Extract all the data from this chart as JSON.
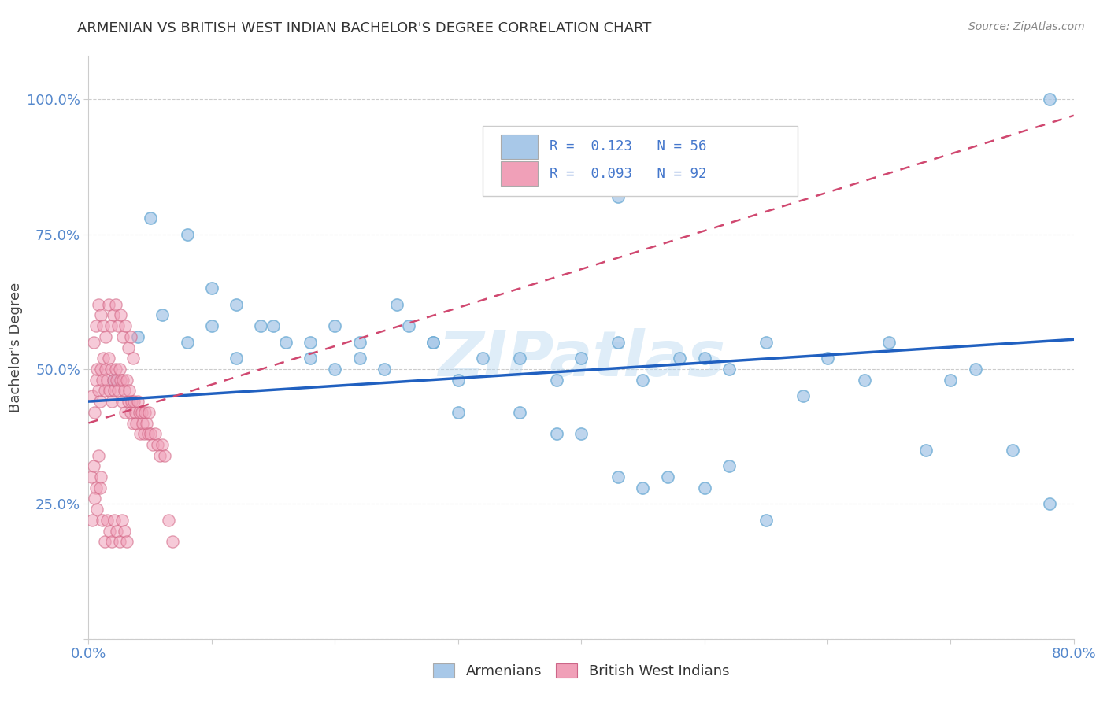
{
  "title": "ARMENIAN VS BRITISH WEST INDIAN BACHELOR'S DEGREE CORRELATION CHART",
  "source": "Source: ZipAtlas.com",
  "ylabel": "Bachelor's Degree",
  "xmin": 0.0,
  "xmax": 0.8,
  "ymin": 0.0,
  "ymax": 1.08,
  "watermark": "ZIPatlas",
  "armenian_color": "#a8c8e8",
  "armenian_edge": "#6aaad4",
  "bwi_color": "#f0a0b8",
  "bwi_edge": "#d06080",
  "trend_armenian_color": "#2060c0",
  "trend_bwi_color": "#d04870",
  "arm_trend_x0": 0.0,
  "arm_trend_x1": 0.8,
  "arm_trend_y0": 0.44,
  "arm_trend_y1": 0.555,
  "bwi_trend_x0": 0.0,
  "bwi_trend_x1": 0.8,
  "bwi_trend_y0": 0.4,
  "bwi_trend_y1": 0.97,
  "armenian_x": [
    0.02,
    0.04,
    0.06,
    0.08,
    0.1,
    0.12,
    0.14,
    0.16,
    0.18,
    0.2,
    0.22,
    0.24,
    0.26,
    0.28,
    0.3,
    0.32,
    0.35,
    0.38,
    0.4,
    0.43,
    0.45,
    0.48,
    0.5,
    0.52,
    0.55,
    0.58,
    0.6,
    0.63,
    0.65,
    0.68,
    0.7,
    0.72,
    0.75,
    0.78,
    0.05,
    0.08,
    0.1,
    0.12,
    0.15,
    0.18,
    0.2,
    0.22,
    0.25,
    0.28,
    0.3,
    0.35,
    0.38,
    0.4,
    0.43,
    0.45,
    0.47,
    0.5,
    0.52,
    0.55,
    0.78,
    0.43
  ],
  "armenian_y": [
    0.48,
    0.56,
    0.6,
    0.55,
    0.58,
    0.52,
    0.58,
    0.55,
    0.52,
    0.58,
    0.52,
    0.5,
    0.58,
    0.55,
    0.48,
    0.52,
    0.52,
    0.48,
    0.52,
    0.55,
    0.48,
    0.52,
    0.52,
    0.5,
    0.55,
    0.45,
    0.52,
    0.48,
    0.55,
    0.35,
    0.48,
    0.5,
    0.35,
    0.25,
    0.78,
    0.75,
    0.65,
    0.62,
    0.58,
    0.55,
    0.5,
    0.55,
    0.62,
    0.55,
    0.42,
    0.42,
    0.38,
    0.38,
    0.3,
    0.28,
    0.3,
    0.28,
    0.32,
    0.22,
    1.0,
    0.82
  ],
  "bwi_x": [
    0.003,
    0.005,
    0.006,
    0.007,
    0.008,
    0.009,
    0.01,
    0.011,
    0.012,
    0.013,
    0.014,
    0.015,
    0.016,
    0.017,
    0.018,
    0.019,
    0.02,
    0.021,
    0.022,
    0.023,
    0.024,
    0.025,
    0.026,
    0.027,
    0.028,
    0.029,
    0.03,
    0.031,
    0.032,
    0.033,
    0.034,
    0.035,
    0.036,
    0.037,
    0.038,
    0.039,
    0.04,
    0.041,
    0.042,
    0.043,
    0.044,
    0.045,
    0.046,
    0.047,
    0.048,
    0.049,
    0.05,
    0.052,
    0.054,
    0.056,
    0.058,
    0.06,
    0.062,
    0.004,
    0.006,
    0.008,
    0.01,
    0.012,
    0.014,
    0.016,
    0.018,
    0.02,
    0.022,
    0.024,
    0.026,
    0.028,
    0.03,
    0.032,
    0.034,
    0.036,
    0.002,
    0.004,
    0.006,
    0.008,
    0.01,
    0.003,
    0.005,
    0.007,
    0.009,
    0.011,
    0.013,
    0.015,
    0.017,
    0.019,
    0.021,
    0.023,
    0.025,
    0.027,
    0.029,
    0.031,
    0.065,
    0.068
  ],
  "bwi_y": [
    0.45,
    0.42,
    0.48,
    0.5,
    0.46,
    0.44,
    0.5,
    0.48,
    0.52,
    0.46,
    0.5,
    0.48,
    0.52,
    0.46,
    0.5,
    0.44,
    0.48,
    0.46,
    0.5,
    0.48,
    0.46,
    0.5,
    0.48,
    0.44,
    0.48,
    0.46,
    0.42,
    0.48,
    0.44,
    0.46,
    0.42,
    0.44,
    0.4,
    0.44,
    0.42,
    0.4,
    0.44,
    0.42,
    0.38,
    0.42,
    0.4,
    0.38,
    0.42,
    0.4,
    0.38,
    0.42,
    0.38,
    0.36,
    0.38,
    0.36,
    0.34,
    0.36,
    0.34,
    0.55,
    0.58,
    0.62,
    0.6,
    0.58,
    0.56,
    0.62,
    0.58,
    0.6,
    0.62,
    0.58,
    0.6,
    0.56,
    0.58,
    0.54,
    0.56,
    0.52,
    0.3,
    0.32,
    0.28,
    0.34,
    0.3,
    0.22,
    0.26,
    0.24,
    0.28,
    0.22,
    0.18,
    0.22,
    0.2,
    0.18,
    0.22,
    0.2,
    0.18,
    0.22,
    0.2,
    0.18,
    0.22,
    0.18
  ]
}
